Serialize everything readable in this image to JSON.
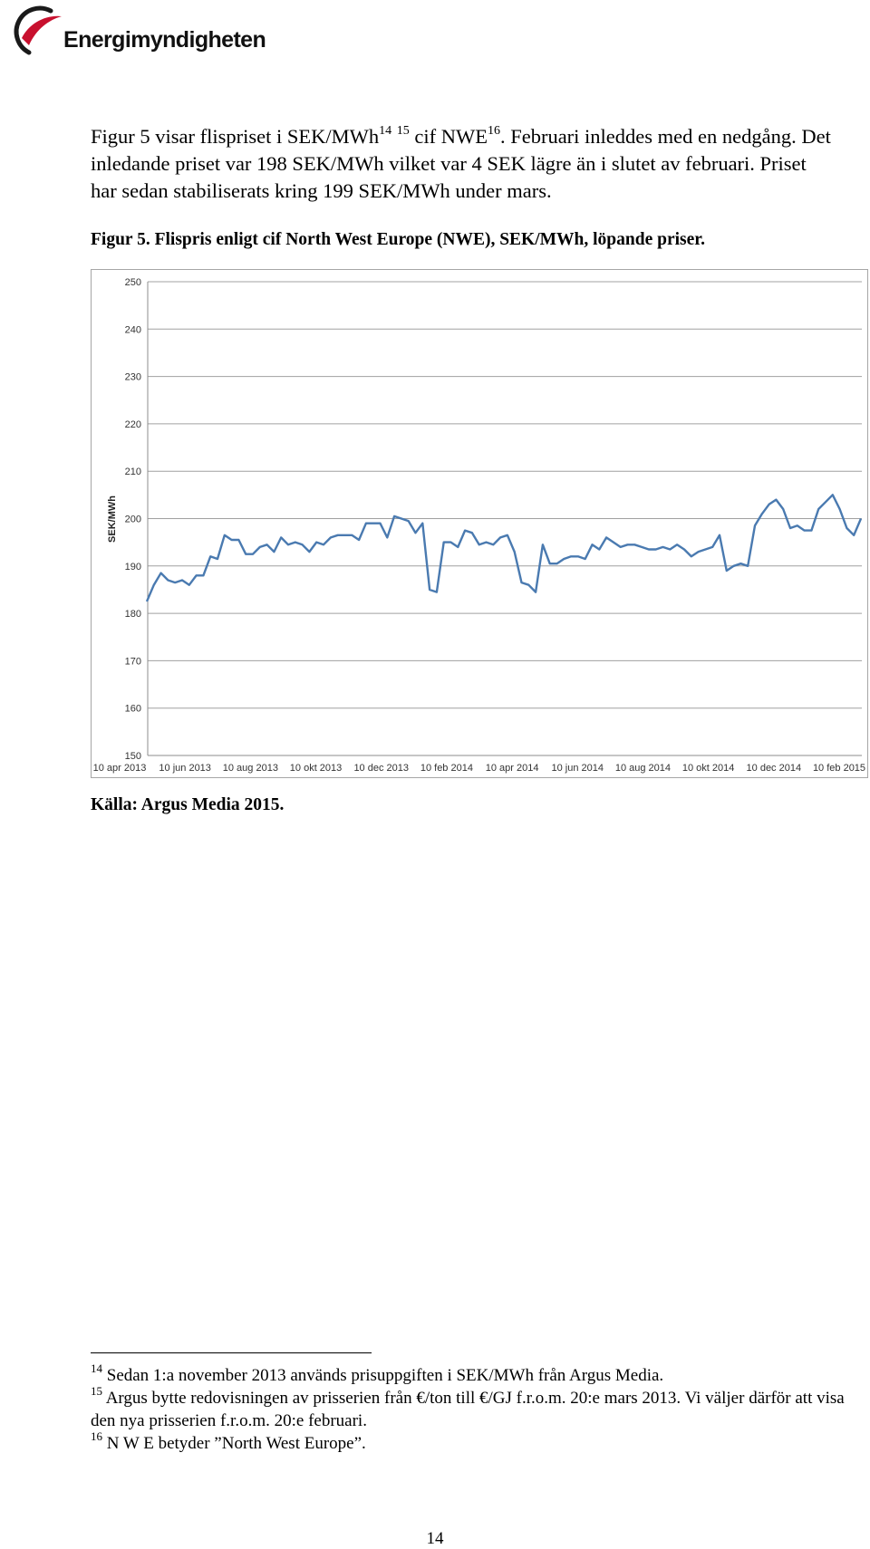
{
  "header": {
    "logo_text": "Energimyndigheten",
    "brand_red": "#c8102e",
    "brand_dark": "#1a1a1a"
  },
  "body": {
    "text_a": "Figur 5 visar flispriset i SEK/MWh",
    "sup_a": "14",
    "sup_b": "15",
    "text_b": " cif NWE",
    "sup_c": "16",
    "text_c": ". Februari inleddes med en nedgång. Det inledande priset var 198 SEK/MWh vilket var 4 SEK lägre än i slutet av februari. Priset har sedan stabiliserats kring 199 SEK/MWh under mars."
  },
  "figure": {
    "caption": "Figur 5. Flispris enligt cif North West Europe (NWE), SEK/MWh, löpande priser.",
    "source": "Källa: Argus Media 2015."
  },
  "chart_data": {
    "type": "line",
    "title": "",
    "xlabel": "",
    "ylabel": "SEK/MWh",
    "ylim": [
      150,
      250
    ],
    "yticks": [
      150,
      160,
      170,
      180,
      190,
      200,
      210,
      220,
      230,
      240,
      250
    ],
    "x_tick_labels": [
      "10 apr 2013",
      "10 jun 2013",
      "10 aug 2013",
      "10 okt 2013",
      "10 dec 2013",
      "10 feb 2014",
      "10 apr 2014",
      "10 jun 2014",
      "10 aug 2014",
      "10 okt 2014",
      "10 dec 2014",
      "10 feb 2015"
    ],
    "grid": "horizontal",
    "legend": "none",
    "line_color": "#4a7ab0",
    "series": [
      {
        "values": [
          182.5,
          186,
          188.5,
          187,
          186.5,
          187,
          186,
          188,
          188,
          192,
          191.5,
          196.5,
          195.5,
          195.5,
          192.5,
          192.5,
          194,
          194.5,
          193,
          196,
          194.5,
          195,
          194.5,
          193,
          195,
          194.5,
          196,
          196.5,
          196.5,
          196.5,
          195.5,
          199,
          199,
          199,
          196,
          200.5,
          200,
          199.5,
          197,
          199,
          185,
          184.5,
          195,
          195,
          194,
          197.5,
          197,
          194.5,
          195,
          194.5,
          196,
          196.5,
          193,
          186.5,
          186,
          184.5,
          194.5,
          190.5,
          190.5,
          191.5,
          192,
          192,
          191.5,
          194.5,
          193.5,
          196,
          195,
          194,
          194.5,
          194.5,
          194,
          193.5,
          193.5,
          194,
          193.5,
          194.5,
          193.5,
          192,
          193,
          193.5,
          194,
          196.5,
          189,
          190,
          190.5,
          190,
          198.5,
          201,
          203,
          204,
          202,
          198,
          198.5,
          197.5,
          197.5,
          202,
          203.5,
          205,
          202,
          198,
          196.5,
          200
        ]
      }
    ]
  },
  "footnotes": [
    {
      "num": "14",
      "text": "Sedan 1:a november 2013 används prisuppgiften i SEK/MWh från Argus Media."
    },
    {
      "num": "15",
      "text": "Argus bytte redovisningen av prisserien från €/ton till €/GJ f.r.o.m. 20:e mars 2013. Vi väljer därför att visa den nya prisserien f.r.o.m. 20:e februari."
    },
    {
      "num": "16",
      "text": "N W E betyder ”North West Europe”."
    }
  ],
  "page_number": "14"
}
